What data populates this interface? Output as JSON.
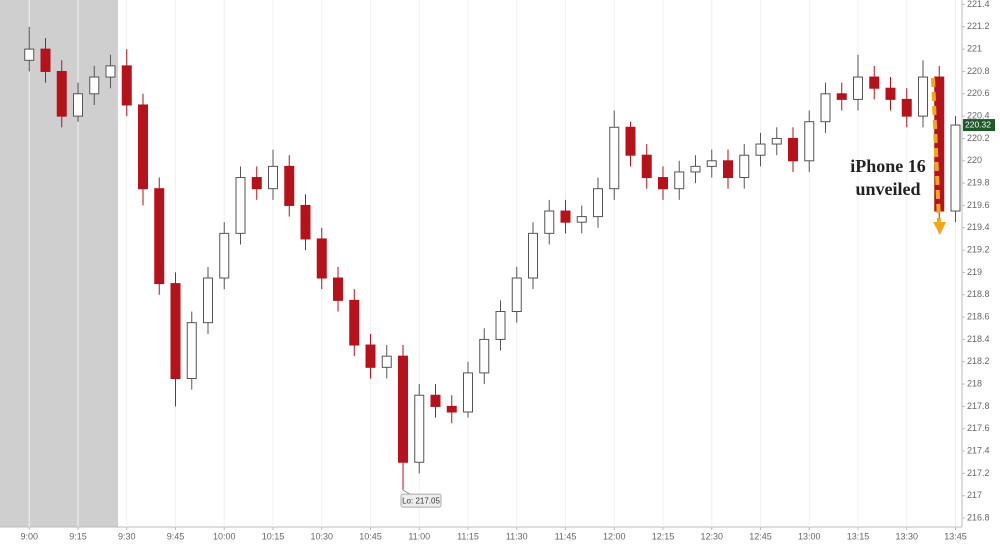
{
  "chart_data": {
    "type": "candlestick",
    "x": [
      "9:00",
      "9:05",
      "9:10",
      "9:15",
      "9:20",
      "9:25",
      "9:30",
      "9:35",
      "9:40",
      "9:45",
      "9:50",
      "9:55",
      "10:00",
      "10:05",
      "10:10",
      "10:15",
      "10:20",
      "10:25",
      "10:30",
      "10:35",
      "10:40",
      "10:45",
      "10:50",
      "10:55",
      "11:00",
      "11:05",
      "11:10",
      "11:15",
      "11:20",
      "11:25",
      "11:30",
      "11:35",
      "11:40",
      "11:45",
      "11:50",
      "11:55",
      "12:00",
      "12:05",
      "12:10",
      "12:15",
      "12:20",
      "12:25",
      "12:30",
      "12:35",
      "12:40",
      "12:45",
      "12:50",
      "12:55",
      "13:00",
      "13:05",
      "13:10",
      "13:15",
      "13:20",
      "13:25",
      "13:30",
      "13:35",
      "13:40",
      "13:45"
    ],
    "open": [
      220.9,
      221.0,
      220.8,
      220.4,
      220.6,
      220.75,
      220.85,
      220.5,
      219.75,
      218.9,
      218.05,
      218.55,
      218.95,
      219.35,
      219.85,
      219.75,
      219.95,
      219.6,
      219.3,
      218.95,
      218.75,
      218.35,
      218.15,
      218.25,
      217.3,
      217.9,
      217.8,
      217.75,
      218.1,
      218.4,
      218.65,
      218.95,
      219.35,
      219.55,
      219.45,
      219.5,
      219.75,
      220.3,
      220.05,
      219.85,
      219.75,
      219.9,
      219.95,
      220.0,
      219.85,
      220.05,
      220.15,
      220.2,
      220.0,
      220.35,
      220.6,
      220.55,
      220.75,
      220.65,
      220.55,
      220.4,
      220.75,
      219.55
    ],
    "high": [
      221.2,
      221.1,
      220.9,
      220.7,
      220.85,
      220.95,
      221.0,
      220.6,
      219.85,
      219.0,
      218.65,
      219.05,
      219.45,
      219.95,
      219.95,
      220.1,
      220.05,
      219.7,
      219.4,
      219.05,
      218.85,
      218.45,
      218.35,
      218.35,
      218.0,
      218.0,
      217.9,
      218.2,
      218.5,
      218.75,
      219.05,
      219.45,
      219.65,
      219.65,
      219.6,
      219.85,
      220.45,
      220.35,
      220.15,
      219.95,
      220.0,
      220.05,
      220.1,
      220.1,
      220.15,
      220.25,
      220.3,
      220.3,
      220.45,
      220.7,
      220.7,
      220.95,
      220.85,
      220.75,
      220.65,
      220.9,
      220.85,
      220.4
    ],
    "low": [
      220.8,
      220.7,
      220.3,
      220.35,
      220.5,
      220.65,
      220.4,
      219.6,
      218.8,
      217.8,
      217.95,
      218.45,
      218.85,
      219.25,
      219.65,
      219.65,
      219.5,
      219.2,
      218.85,
      218.65,
      218.25,
      218.05,
      218.05,
      217.05,
      217.2,
      217.7,
      217.65,
      217.7,
      218.0,
      218.3,
      218.55,
      218.85,
      219.25,
      219.35,
      219.35,
      219.4,
      219.65,
      219.95,
      219.75,
      219.65,
      219.65,
      219.8,
      219.85,
      219.75,
      219.75,
      219.95,
      220.05,
      219.9,
      219.9,
      220.25,
      220.45,
      220.45,
      220.55,
      220.45,
      220.3,
      220.3,
      219.35,
      219.45
    ],
    "close": [
      221.0,
      220.8,
      220.4,
      220.6,
      220.75,
      220.85,
      220.5,
      219.75,
      218.9,
      218.05,
      218.55,
      218.95,
      219.35,
      219.85,
      219.75,
      219.95,
      219.6,
      219.3,
      218.95,
      218.75,
      218.35,
      218.15,
      218.25,
      217.3,
      217.9,
      217.8,
      217.75,
      218.1,
      218.4,
      218.65,
      218.95,
      219.35,
      219.55,
      219.45,
      219.5,
      219.75,
      220.3,
      220.05,
      219.85,
      219.75,
      219.9,
      219.95,
      220.0,
      219.85,
      220.05,
      220.15,
      220.2,
      220.0,
      220.35,
      220.6,
      220.55,
      220.75,
      220.65,
      220.55,
      220.4,
      220.75,
      219.55,
      220.32
    ],
    "up_color": "#ffffff",
    "down_color": "#b5121b",
    "xlim": [
      "8:51",
      "13:47"
    ],
    "xticks": [
      "9:00",
      "9:15",
      "9:30",
      "9:45",
      "10:00",
      "10:15",
      "10:30",
      "10:45",
      "11:00",
      "11:15",
      "11:30",
      "11:45",
      "12:00",
      "12:15",
      "12:30",
      "12:45",
      "13:00",
      "13:15",
      "13:30",
      "13:45"
    ],
    "ylim": [
      216.72,
      221.44
    ],
    "yticks": [
      216.8,
      217,
      217.2,
      217.4,
      217.6,
      217.8,
      218,
      218.2,
      218.4,
      218.6,
      218.8,
      219,
      219.2,
      219.4,
      219.6,
      219.8,
      220,
      220.2,
      220.4,
      220.6,
      220.8,
      221,
      221.2,
      221.4
    ],
    "grid": true,
    "low_marker": {
      "value": 217.05,
      "label": "Lo: 217.05"
    },
    "last_price": 220.32,
    "annotation_lines": [
      "iPhone 16",
      "unveiled"
    ]
  }
}
